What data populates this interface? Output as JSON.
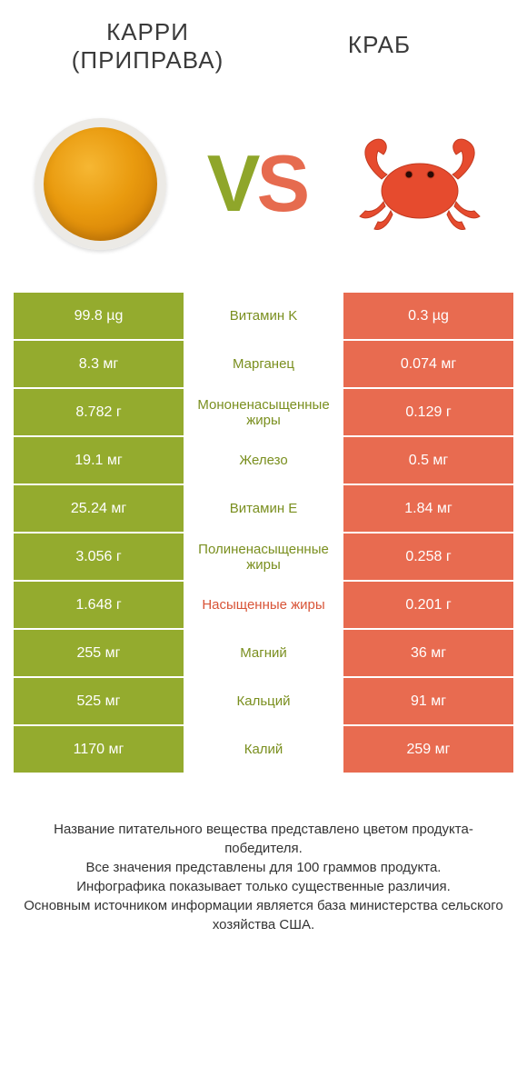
{
  "colors": {
    "left": "#94ab2e",
    "right": "#e86b50",
    "label_left": "#7a8f1f",
    "label_right": "#d85437"
  },
  "titles": {
    "left_line1": "КАРРИ",
    "left_line2": "(ПРИПРАВА)",
    "right": "КРАБ"
  },
  "vs": {
    "v": "V",
    "s": "S"
  },
  "rows": [
    {
      "left": "99.8 µg",
      "label": "Витамин K",
      "right": "0.3 µg",
      "winner": "left"
    },
    {
      "left": "8.3 мг",
      "label": "Марганец",
      "right": "0.074 мг",
      "winner": "left"
    },
    {
      "left": "8.782 г",
      "label": "Мононенасыщенные жиры",
      "right": "0.129 г",
      "winner": "left"
    },
    {
      "left": "19.1 мг",
      "label": "Железо",
      "right": "0.5 мг",
      "winner": "left"
    },
    {
      "left": "25.24 мг",
      "label": "Витамин E",
      "right": "1.84 мг",
      "winner": "left"
    },
    {
      "left": "3.056 г",
      "label": "Полиненасыщенные жиры",
      "right": "0.258 г",
      "winner": "left"
    },
    {
      "left": "1.648 г",
      "label": "Насыщенные жиры",
      "right": "0.201 г",
      "winner": "right"
    },
    {
      "left": "255 мг",
      "label": "Магний",
      "right": "36 мг",
      "winner": "left"
    },
    {
      "left": "525 мг",
      "label": "Кальций",
      "right": "91 мг",
      "winner": "left"
    },
    {
      "left": "1170 мг",
      "label": "Калий",
      "right": "259 мг",
      "winner": "left"
    }
  ],
  "footer": {
    "l1": "Название питательного вещества представлено цветом продукта-победителя.",
    "l2": "Все значения представлены для 100 граммов продукта.",
    "l3": "Инфографика показывает только существенные различия.",
    "l4": "Основным источником информации является база министерства сельского хозяйства США."
  }
}
